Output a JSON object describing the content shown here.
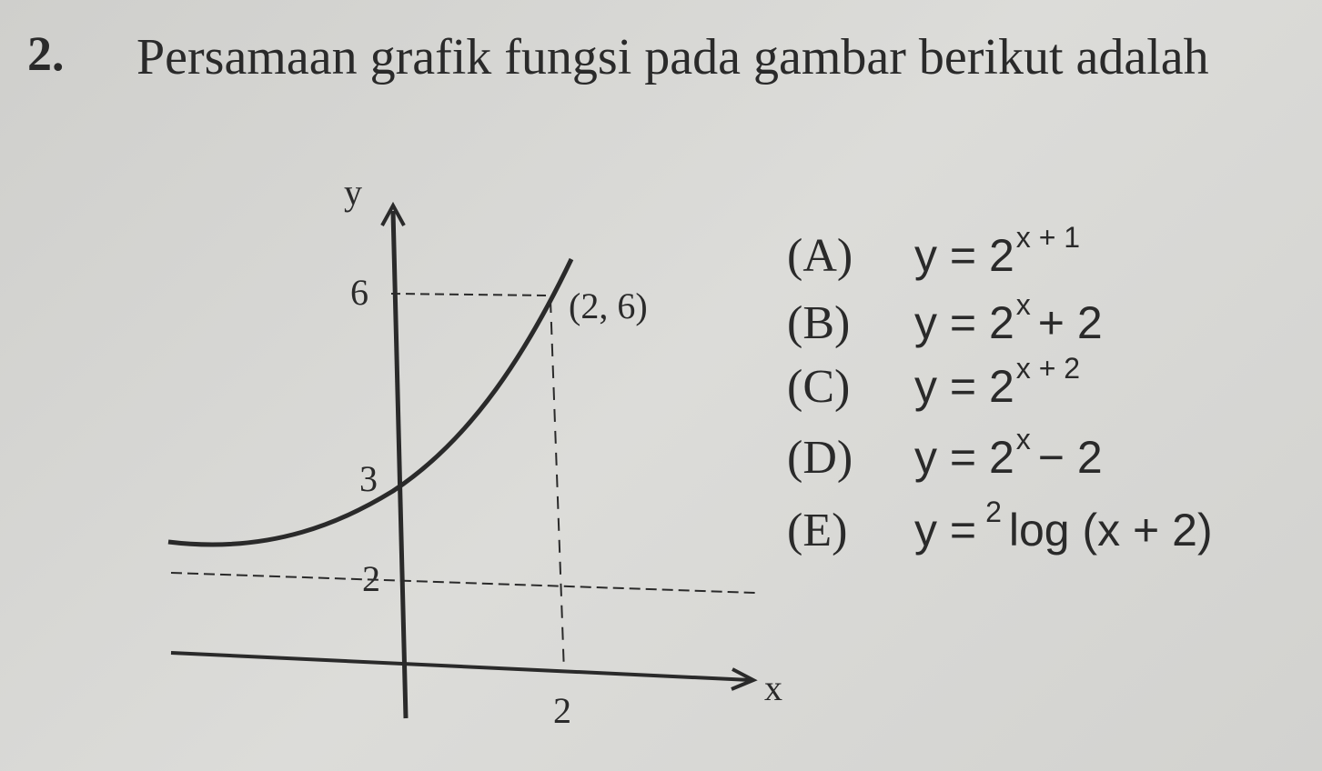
{
  "question": {
    "number": "2.",
    "text": "Persamaan grafik fungsi pada gambar berikut adalah"
  },
  "figure": {
    "y_axis_label": "y",
    "x_axis_label": "x",
    "y_label_6": "6",
    "y_label_3": "3",
    "y_label_2": "2",
    "x_label_2": "2",
    "point_label": "(2, 6)"
  },
  "options": [
    {
      "letter": "(A)",
      "pre": "y = 2",
      "sup": "x + 1"
    },
    {
      "letter": "(B)",
      "pre": "y = 2",
      "sup": "x",
      "post": "+ 2"
    },
    {
      "letter": "(C)",
      "pre": "y = 2",
      "sup": "x + 2"
    },
    {
      "letter": "(D)",
      "pre": "y = 2",
      "sup": "x",
      "post": "− 2"
    },
    {
      "letter": "(E)",
      "pre": "y =",
      "sup": "2",
      "post": "log (x + 2)"
    }
  ]
}
